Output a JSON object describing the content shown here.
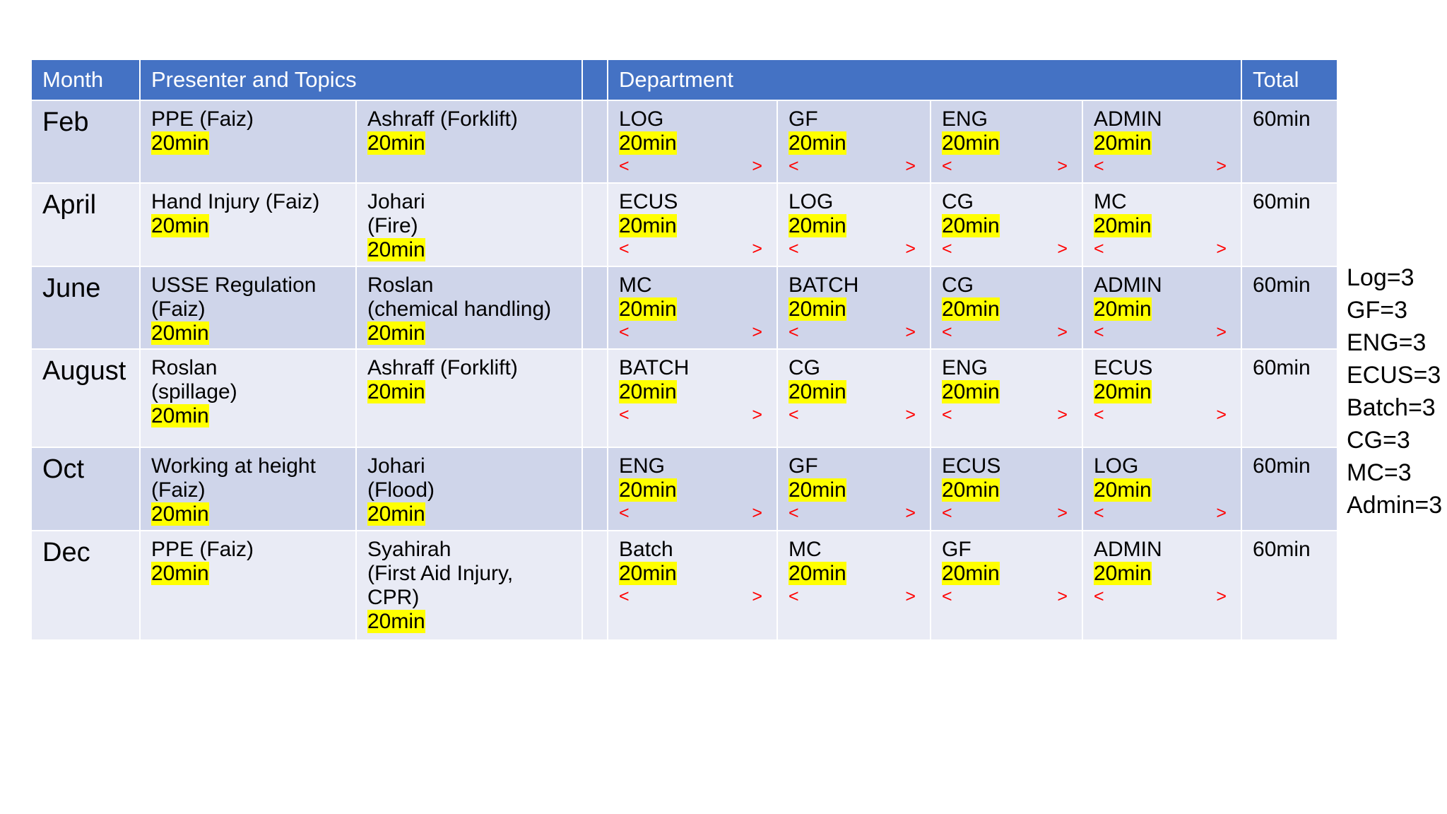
{
  "header": {
    "month": "Month",
    "presenter_topics": "Presenter and Topics",
    "department": "Department",
    "total": "Total"
  },
  "rows": [
    {
      "month": "Feb",
      "topic1": [
        "PPE (Faiz)"
      ],
      "topic1_dur": "20min",
      "topic2": [
        "Ashraff (Forklift)"
      ],
      "topic2_dur": "20min",
      "depts": [
        {
          "name": "LOG",
          "dur": "20min"
        },
        {
          "name": "GF",
          "dur": "20min"
        },
        {
          "name": "ENG",
          "dur": "20min"
        },
        {
          "name": "ADMIN",
          "dur": "20min"
        }
      ],
      "total": "60min"
    },
    {
      "month": "April",
      "topic1": [
        "Hand Injury (Faiz)"
      ],
      "topic1_dur": "20min",
      "topic2": [
        "Johari",
        "(Fire)"
      ],
      "topic2_dur": "20min",
      "depts": [
        {
          "name": "ECUS",
          "dur": "20min"
        },
        {
          "name": "LOG",
          "dur": "20min"
        },
        {
          "name": "CG",
          "dur": "20min"
        },
        {
          "name": "MC",
          "dur": "20min"
        }
      ],
      "total": "60min"
    },
    {
      "month": "June",
      "topic1": [
        "USSE Regulation",
        "(Faiz)"
      ],
      "topic1_dur": "20min",
      "topic2": [
        "Roslan",
        "(chemical handling)"
      ],
      "topic2_dur": "20min",
      "depts": [
        {
          "name": "MC",
          "dur": "20min"
        },
        {
          "name": "BATCH",
          "dur": "20min"
        },
        {
          "name": "CG",
          "dur": "20min"
        },
        {
          "name": "ADMIN",
          "dur": "20min"
        }
      ],
      "total": "60min"
    },
    {
      "month": "August",
      "topic1": [
        "Roslan",
        "(spillage)"
      ],
      "topic1_dur": "20min",
      "topic2": [
        "Ashraff (Forklift)"
      ],
      "topic2_dur": "20min",
      "depts": [
        {
          "name": "BATCH",
          "dur": "20min"
        },
        {
          "name": "CG",
          "dur": "20min"
        },
        {
          "name": "ENG",
          "dur": "20min"
        },
        {
          "name": "ECUS",
          "dur": "20min"
        }
      ],
      "total": "60min"
    },
    {
      "month": "Oct",
      "topic1": [
        "Working at height",
        "(Faiz)"
      ],
      "topic1_dur": "20min",
      "topic2": [
        "Johari",
        "(Flood)"
      ],
      "topic2_dur": "20min",
      "depts": [
        {
          "name": "ENG",
          "dur": "20min"
        },
        {
          "name": "GF",
          "dur": "20min"
        },
        {
          "name": "ECUS",
          "dur": "20min"
        },
        {
          "name": "LOG",
          "dur": "20min"
        }
      ],
      "total": "60min"
    },
    {
      "month": "Dec",
      "topic1": [
        "PPE (Faiz)"
      ],
      "topic1_dur": "20min",
      "topic2": [
        "Syahirah",
        "(First Aid Injury,",
        "CPR)"
      ],
      "topic2_dur": "20min",
      "depts": [
        {
          "name": "Batch",
          "dur": "20min"
        },
        {
          "name": "MC",
          "dur": "20min"
        },
        {
          "name": "GF",
          "dur": "20min"
        },
        {
          "name": "ADMIN",
          "dur": "20min"
        }
      ],
      "total": "60min"
    }
  ],
  "arrow_left": "<",
  "arrow_right": ">",
  "summary": [
    "Log=3",
    "GF=3",
    "ENG=3",
    "ECUS=3",
    "Batch=3",
    "CG=3",
    "MC=3",
    "Admin=3"
  ],
  "colors": {
    "header_bg": "#4472c4",
    "row_dark": "#cfd5ea",
    "row_light": "#e9ebf5",
    "highlight": "#ffff00",
    "arrow": "#ff0000"
  }
}
